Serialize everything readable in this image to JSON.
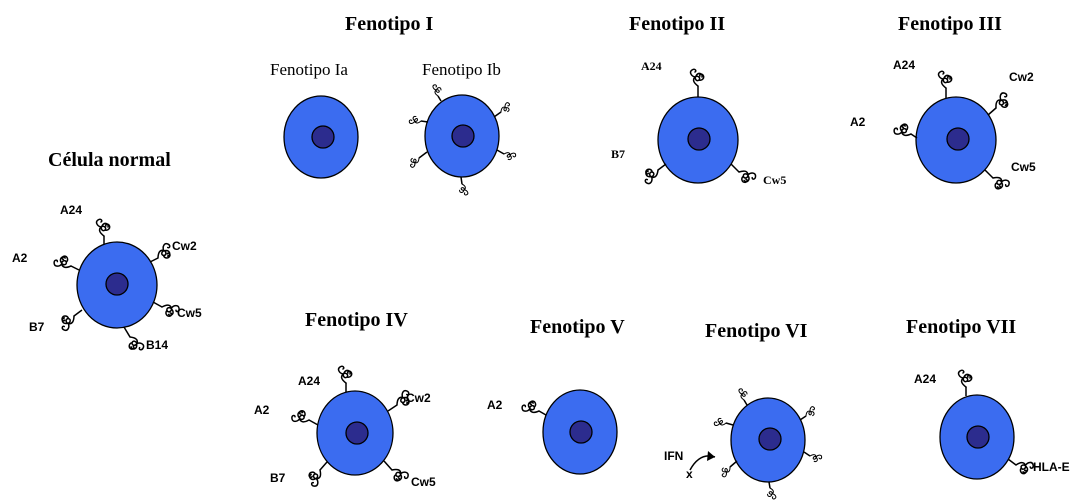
{
  "normal": {
    "title": "Célula normal",
    "labels": [
      "A24",
      "A2",
      "Cw2",
      "Cw5",
      "B7",
      "B14"
    ]
  },
  "fenotipo_i": {
    "title": "Fenotipo I",
    "sub_a": "Fenotipo Ia",
    "sub_b": "Fenotipo Ib"
  },
  "fenotipo_ii": {
    "title": "Fenotipo II",
    "labels": [
      "A24",
      "B7",
      "Cw5"
    ]
  },
  "fenotipo_iii": {
    "title": "Fenotipo III",
    "labels": [
      "A24",
      "Cw2",
      "A2",
      "Cw5"
    ]
  },
  "fenotipo_iv": {
    "title": "Fenotipo IV",
    "labels": [
      "A24",
      "Cw2",
      "A2",
      "B7",
      "Cw5"
    ]
  },
  "fenotipo_v": {
    "title": "Fenotipo V",
    "labels": [
      "A2"
    ]
  },
  "fenotipo_vi": {
    "title": "Fenotipo VI",
    "ifn": "IFN",
    "x_mark": "x"
  },
  "fenotipo_vii": {
    "title": "Fenotipo VII",
    "labels": [
      "A24",
      "HLA-E"
    ]
  },
  "colors": {
    "cell": "#3b6cf0",
    "nucleus": "#2c2c8e",
    "outline": "#000000"
  }
}
